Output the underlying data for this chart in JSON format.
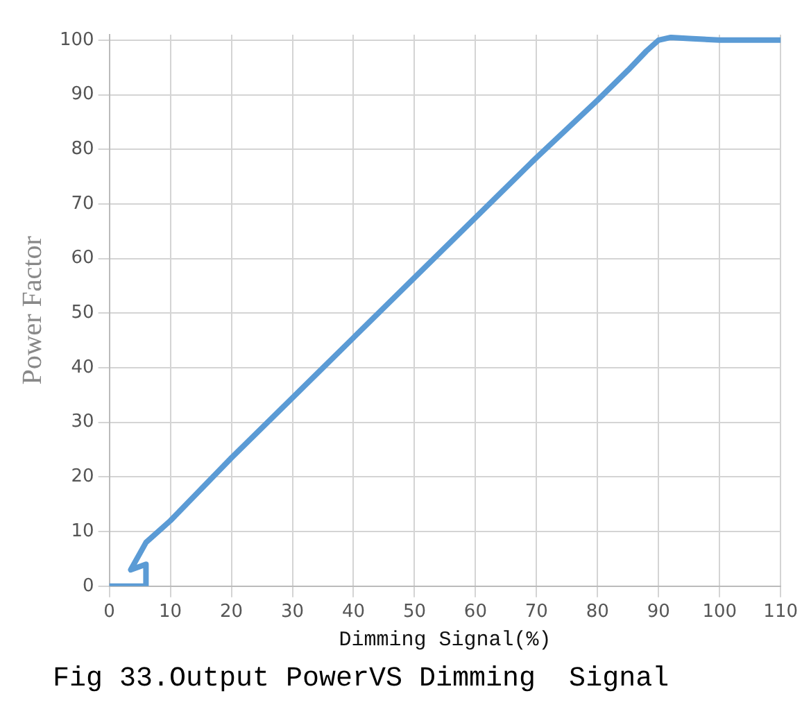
{
  "chart_data": {
    "type": "line",
    "xlabel": "Dimming Signal(%)",
    "ylabel": "Power Factor",
    "annotations": [
      "Fig 33.Output PowerVS Dimming  Signal"
    ],
    "series": [
      {
        "color": "#5b9bd5",
        "x": [
          0,
          6,
          6,
          3.5,
          6,
          10,
          20,
          30,
          40,
          50,
          60,
          70,
          80,
          85,
          88,
          90,
          92,
          95,
          100,
          110
        ],
        "values": [
          0,
          0,
          4,
          3,
          8,
          12,
          23.5,
          34.5,
          45.5,
          56.5,
          67.5,
          78.5,
          89,
          94.5,
          98,
          100,
          100.5,
          100.3,
          100,
          100
        ]
      }
    ],
    "xlim": [
      0,
      110
    ],
    "xticks": [
      0,
      10,
      20,
      30,
      40,
      50,
      60,
      70,
      80,
      90,
      100,
      110
    ],
    "ylim": [
      0,
      101
    ],
    "yticks": [
      0,
      10,
      20,
      30,
      40,
      50,
      60,
      70,
      80,
      90,
      100
    ],
    "grid": true,
    "marker": "none",
    "line_style": "solid",
    "legend": false
  }
}
